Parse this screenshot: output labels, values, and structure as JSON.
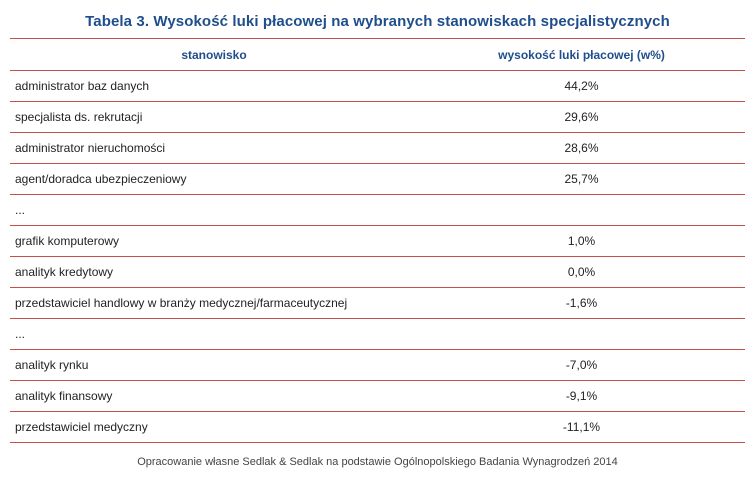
{
  "title": "Tabela 3. Wysokość luki płacowej na wybranych stanowiskach specjalistycznych",
  "table": {
    "headers": [
      "stanowisko",
      "wysokość luki płacowej (w%)"
    ],
    "rows": [
      {
        "position": "administrator baz danych",
        "gap": "44,2%"
      },
      {
        "position": "specjalista ds. rekrutacji",
        "gap": "29,6%"
      },
      {
        "position": "administrator nieruchomości",
        "gap": "28,6%"
      },
      {
        "position": "agent/doradca ubezpieczeniowy",
        "gap": "25,7%"
      },
      {
        "position": "...",
        "gap": ""
      },
      {
        "position": "grafik komputerowy",
        "gap": "1,0%"
      },
      {
        "position": "analityk kredytowy",
        "gap": "0,0%"
      },
      {
        "position": "przedstawiciel handlowy w branży medycznej/farmaceutycznej",
        "gap": "-1,6%"
      },
      {
        "position": "...",
        "gap": ""
      },
      {
        "position": "analityk rynku",
        "gap": "-7,0%"
      },
      {
        "position": "analityk finansowy",
        "gap": "-9,1%"
      },
      {
        "position": "przedstawiciel medyczny",
        "gap": "-11,1%"
      }
    ]
  },
  "source": "Opracowanie własne Sedlak & Sedlak na podstawie Ogólnopolskiego Badania Wynagrodzeń 2014",
  "colors": {
    "title": "#1f4e8c",
    "rule": "#c0504d"
  }
}
